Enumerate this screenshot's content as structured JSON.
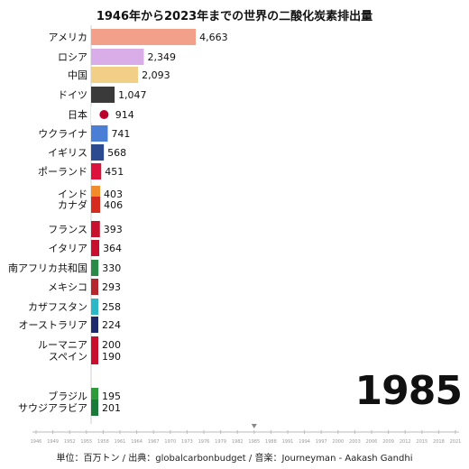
{
  "title": "1946年から2023年までの世界の二酸化炭素排出量",
  "year_label": "1985",
  "footer": "単位：百万トン / 出典：globalcarbonbudget / 音楽：Journeyman - Aakash Gandhi",
  "chart_data": {
    "type": "bar",
    "orientation": "horizontal",
    "title": "1946年から2023年までの世界の二酸化炭素排出量",
    "unit": "百万トン",
    "year": 1985,
    "categories": [
      "アメリカ",
      "ロシア",
      "中国",
      "ドイツ",
      "日本",
      "ウクライナ",
      "イギリス",
      "ポーランド",
      "インド",
      "カナダ",
      "フランス",
      "イタリア",
      "南アフリカ共和国",
      "メキシコ",
      "カザフスタン",
      "オーストラリア",
      "ルーマニア",
      "スペイン",
      "ブラジル",
      "サウジアラビア"
    ],
    "values": [
      4663,
      2349,
      2093,
      1047,
      914,
      741,
      568,
      451,
      403,
      406,
      393,
      364,
      330,
      293,
      258,
      224,
      200,
      190,
      195,
      201
    ],
    "value_labels": [
      "4,663",
      "2,349",
      "2,093",
      "1,047",
      "914",
      "741",
      "568",
      "451",
      "403",
      "406",
      "393",
      "364",
      "330",
      "293",
      "258",
      "224",
      "200",
      "190",
      "195",
      "201"
    ],
    "bar_colors": [
      "#f2a08a",
      "#d9aee8",
      "#f2cf86",
      "#3a3a3a",
      "#ffffff",
      "#4b7fd6",
      "#2b4a8f",
      "#dc143c",
      "#f28c28",
      "#d52b1e",
      "#c8102e",
      "#c8102e",
      "#2a8a4a",
      "#b5252e",
      "#2ab7c8",
      "#1c2a6b",
      "#c8102e",
      "#c8102e",
      "#2e9a3a",
      "#1a7a3a"
    ],
    "timeline_ticks": [
      "1946",
      "1949",
      "1952",
      "1955",
      "1958",
      "1961",
      "1964",
      "1967",
      "1970",
      "1973",
      "1976",
      "1979",
      "1982",
      "1985",
      "1988",
      "1991",
      "1994",
      "1997",
      "2000",
      "2003",
      "2006",
      "2009",
      "2012",
      "2015",
      "2018",
      "2021"
    ]
  }
}
